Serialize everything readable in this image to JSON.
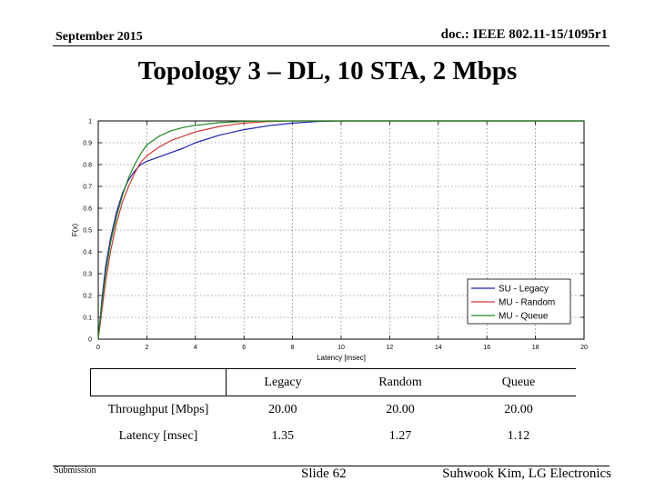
{
  "header": {
    "date": "September 2015",
    "doc_id": "doc.: IEEE 802.11-15/1095r1"
  },
  "title": "Topology 3 – DL, 10 STA, 2 Mbps",
  "chart_data": {
    "type": "line",
    "title": "",
    "xlabel": "Latency [msec]",
    "ylabel": "F(x)",
    "xlim": [
      0,
      20
    ],
    "ylim": [
      0,
      1
    ],
    "xticks": [
      0,
      2,
      4,
      6,
      8,
      10,
      12,
      14,
      16,
      18,
      20
    ],
    "yticks": [
      0,
      0.1,
      0.2,
      0.3,
      0.4,
      0.5,
      0.6,
      0.7,
      0.8,
      0.9,
      1
    ],
    "grid": true,
    "legend_position": "bottom-right",
    "series": [
      {
        "name": "SU - Legacy",
        "color": "#1f1fb4",
        "x": [
          0,
          0.15,
          0.3,
          0.5,
          0.75,
          1,
          1.25,
          1.5,
          1.75,
          2,
          2.5,
          3,
          3.5,
          4,
          5,
          6,
          7,
          8,
          9,
          10,
          20
        ],
        "y": [
          0,
          0.18,
          0.33,
          0.46,
          0.58,
          0.67,
          0.73,
          0.77,
          0.8,
          0.815,
          0.835,
          0.855,
          0.875,
          0.9,
          0.935,
          0.96,
          0.978,
          0.99,
          0.997,
          1,
          1
        ]
      },
      {
        "name": "MU - Random",
        "color": "#d03a3a",
        "x": [
          0,
          0.15,
          0.3,
          0.5,
          0.75,
          1,
          1.25,
          1.5,
          1.75,
          2,
          2.5,
          3,
          3.5,
          4,
          5,
          6,
          7,
          8,
          20
        ],
        "y": [
          0,
          0.13,
          0.26,
          0.4,
          0.53,
          0.63,
          0.7,
          0.76,
          0.81,
          0.84,
          0.88,
          0.91,
          0.93,
          0.95,
          0.975,
          0.99,
          0.997,
          1,
          1
        ]
      },
      {
        "name": "MU - Queue",
        "color": "#1d8a1d",
        "x": [
          0,
          0.15,
          0.3,
          0.5,
          0.75,
          1,
          1.25,
          1.5,
          1.75,
          2,
          2.5,
          3,
          3.5,
          4,
          5,
          6,
          7,
          20
        ],
        "y": [
          0,
          0.16,
          0.3,
          0.44,
          0.56,
          0.66,
          0.74,
          0.8,
          0.85,
          0.89,
          0.93,
          0.955,
          0.97,
          0.98,
          0.992,
          0.998,
          1,
          1
        ]
      }
    ]
  },
  "table": {
    "headers": [
      "",
      "Legacy",
      "Random",
      "Queue"
    ],
    "rows": [
      [
        "Throughput [Mbps]",
        "20.00",
        "20.00",
        "20.00"
      ],
      [
        "Latency [msec]",
        "1.35",
        "1.27",
        "1.12"
      ]
    ]
  },
  "footer": {
    "left": "Submission",
    "center": "Slide 62",
    "right": "Suhwook Kim, LG Electronics"
  }
}
